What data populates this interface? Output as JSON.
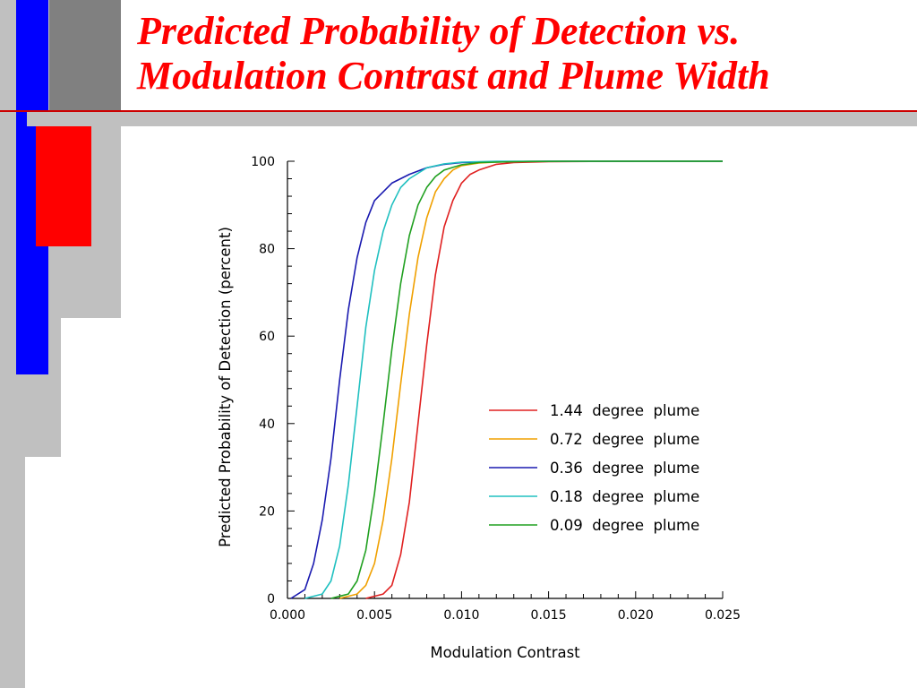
{
  "slide": {
    "title_line1": "Predicted Probability of Detection vs.",
    "title_line2": "Modulation Contrast and Plume Width",
    "colors": {
      "title": "#ff0000",
      "accent_blue": "#0000ff",
      "accent_red": "#ff0000",
      "gray": "#c0c0c0"
    }
  },
  "chart_data": {
    "type": "line",
    "xlabel": "Modulation  Contrast",
    "ylabel": "Predicted  Probability  of  Detection  (percent)",
    "xlim": [
      0.0,
      0.025
    ],
    "ylim": [
      0,
      100
    ],
    "xticks": [
      "0.000",
      "0.005",
      "0.010",
      "0.015",
      "0.020",
      "0.025"
    ],
    "yticks": [
      "0",
      "20",
      "40",
      "60",
      "80",
      "100"
    ],
    "grid": false,
    "legend_position": "lower-right",
    "series": [
      {
        "name": "1.44  degree  plume",
        "color": "#e02020",
        "x": [
          0.0045,
          0.0055,
          0.006,
          0.0065,
          0.007,
          0.0075,
          0.008,
          0.0085,
          0.009,
          0.0095,
          0.01,
          0.0105,
          0.011,
          0.012,
          0.013,
          0.015,
          0.02,
          0.025
        ],
        "y": [
          0,
          1,
          3,
          10,
          22,
          40,
          58,
          74,
          85,
          91,
          95,
          97,
          98,
          99.3,
          99.7,
          99.9,
          100,
          100
        ]
      },
      {
        "name": "0.72  degree  plume",
        "color": "#f0a000",
        "x": [
          0.003,
          0.004,
          0.0045,
          0.005,
          0.0055,
          0.006,
          0.0065,
          0.007,
          0.0075,
          0.008,
          0.0085,
          0.009,
          0.0095,
          0.01,
          0.011,
          0.012,
          0.014,
          0.02,
          0.025
        ],
        "y": [
          0,
          1,
          3,
          8,
          18,
          32,
          49,
          65,
          78,
          87,
          93,
          96,
          98,
          99,
          99.6,
          99.8,
          100,
          100,
          100
        ]
      },
      {
        "name": "0.36  degree  plume",
        "color": "#1a1ab0",
        "x": [
          0.0002,
          0.001,
          0.0015,
          0.002,
          0.0025,
          0.003,
          0.0035,
          0.004,
          0.0045,
          0.005,
          0.006,
          0.007,
          0.008,
          0.009,
          0.01,
          0.012,
          0.015,
          0.025
        ],
        "y": [
          0,
          2,
          8,
          18,
          32,
          50,
          66,
          78,
          86,
          91,
          95,
          97,
          98.5,
          99.3,
          99.7,
          99.9,
          100,
          100
        ]
      },
      {
        "name": "0.18  degree  plume",
        "color": "#20c0c0",
        "x": [
          0.001,
          0.002,
          0.0025,
          0.003,
          0.0035,
          0.004,
          0.0045,
          0.005,
          0.0055,
          0.006,
          0.0065,
          0.007,
          0.008,
          0.009,
          0.01,
          0.012,
          0.015,
          0.025
        ],
        "y": [
          0,
          1,
          4,
          12,
          26,
          44,
          62,
          75,
          84,
          90,
          94,
          96,
          98.5,
          99.4,
          99.8,
          100,
          100,
          100
        ]
      },
      {
        "name": "0.09  degree  plume",
        "color": "#20a020",
        "x": [
          0.0025,
          0.0035,
          0.004,
          0.0045,
          0.005,
          0.0055,
          0.006,
          0.0065,
          0.007,
          0.0075,
          0.008,
          0.0085,
          0.009,
          0.01,
          0.011,
          0.013,
          0.016,
          0.025
        ],
        "y": [
          0,
          1,
          4,
          11,
          24,
          40,
          57,
          72,
          83,
          90,
          94,
          96.5,
          98,
          99.2,
          99.7,
          99.9,
          100,
          100
        ]
      }
    ]
  }
}
